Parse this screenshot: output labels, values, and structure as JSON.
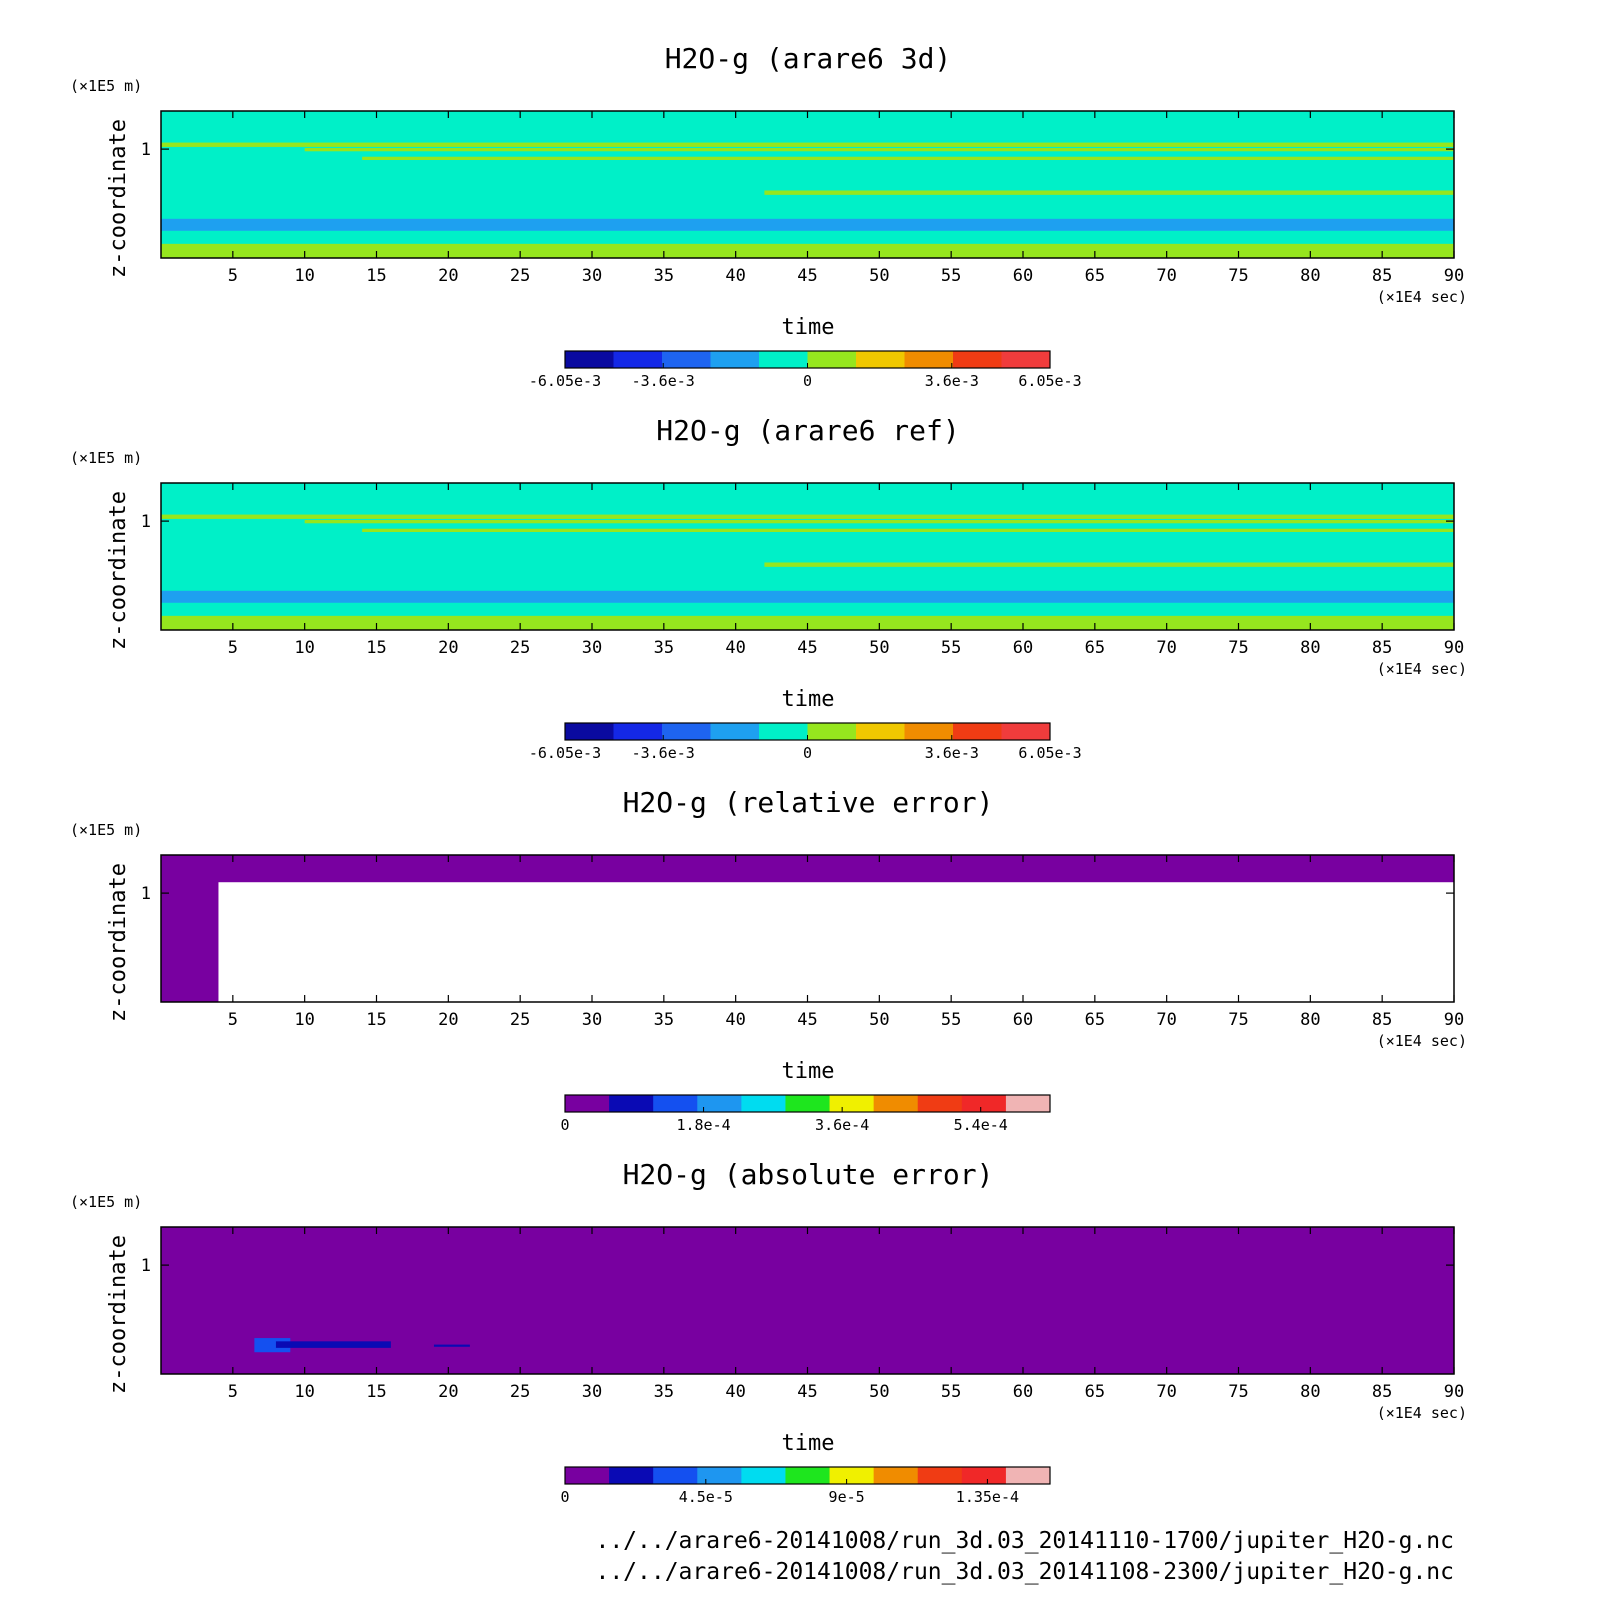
{
  "chart_data": [
    {
      "type": "heatmap",
      "title": "H2O-g (arare6 3d)",
      "xlabel": "time",
      "ylabel": "z-coordinate",
      "x_unit": "(×1E4 sec)",
      "y_unit": "(×1E5 m)",
      "xlim": [
        0,
        90
      ],
      "ylim": [
        0,
        1.35
      ],
      "x_ticks": [
        "5",
        "10",
        "15",
        "20",
        "25",
        "30",
        "35",
        "40",
        "45",
        "50",
        "55",
        "60",
        "65",
        "70",
        "75",
        "80",
        "85",
        "90"
      ],
      "y_ticks": [
        "1"
      ],
      "colorbar": {
        "colors": [
          "#0a0aa0",
          "#1428e6",
          "#1e64f0",
          "#1ea0f0",
          "#00f0c8",
          "#96e61e",
          "#f0c800",
          "#f08c00",
          "#f03c14",
          "#f03c3c"
        ],
        "labels": [
          {
            "v": -6.05,
            "t": "-6.05e-3"
          },
          {
            "v": -3.6,
            "t": "-3.6e-3"
          },
          {
            "v": 0,
            "t": "0"
          },
          {
            "v": 3.6,
            "t": "3.6e-3"
          },
          {
            "v": 6.05,
            "t": "6.05e-3"
          }
        ],
        "range": [
          -6.05,
          6.05
        ],
        "scale": "1e-3"
      },
      "background": "#00f0c8",
      "bands": [
        {
          "t0": 0,
          "t1": 90,
          "z0": 0.25,
          "z1": 0.36,
          "value": -1.5,
          "color": "#1ea0f0"
        },
        {
          "t0": 0,
          "t1": 90,
          "z0": 0.0,
          "z1": 0.13,
          "value": 1.5,
          "color": "#96e61e"
        },
        {
          "t0": 0,
          "t1": 90,
          "z0": 1.02,
          "z1": 1.06,
          "value": 1.0,
          "color": "#96e61e"
        },
        {
          "t0": 10,
          "t1": 90,
          "z0": 0.98,
          "z1": 1.01,
          "value": 1.0,
          "color": "#96e61e"
        },
        {
          "t0": 14,
          "t1": 90,
          "z0": 0.9,
          "z1": 0.93,
          "value": 1.0,
          "color": "#96e61e"
        },
        {
          "t0": 42,
          "t1": 90,
          "z0": 0.58,
          "z1": 0.62,
          "value": 1.0,
          "color": "#96e61e"
        }
      ]
    },
    {
      "type": "heatmap",
      "title": "H2O-g (arare6 ref)",
      "xlabel": "time",
      "ylabel": "z-coordinate",
      "x_unit": "(×1E4 sec)",
      "y_unit": "(×1E5 m)",
      "xlim": [
        0,
        90
      ],
      "ylim": [
        0,
        1.35
      ],
      "x_ticks": [
        "5",
        "10",
        "15",
        "20",
        "25",
        "30",
        "35",
        "40",
        "45",
        "50",
        "55",
        "60",
        "65",
        "70",
        "75",
        "80",
        "85",
        "90"
      ],
      "y_ticks": [
        "1"
      ],
      "colorbar": {
        "colors": [
          "#0a0aa0",
          "#1428e6",
          "#1e64f0",
          "#1ea0f0",
          "#00f0c8",
          "#96e61e",
          "#f0c800",
          "#f08c00",
          "#f03c14",
          "#f03c3c"
        ],
        "labels": [
          {
            "v": -6.05,
            "t": "-6.05e-3"
          },
          {
            "v": -3.6,
            "t": "-3.6e-3"
          },
          {
            "v": 0,
            "t": "0"
          },
          {
            "v": 3.6,
            "t": "3.6e-3"
          },
          {
            "v": 6.05,
            "t": "6.05e-3"
          }
        ],
        "range": [
          -6.05,
          6.05
        ],
        "scale": "1e-3"
      },
      "background": "#00f0c8",
      "bands": [
        {
          "t0": 0,
          "t1": 90,
          "z0": 0.25,
          "z1": 0.36,
          "value": -1.5,
          "color": "#1ea0f0"
        },
        {
          "t0": 0,
          "t1": 90,
          "z0": 0.0,
          "z1": 0.13,
          "value": 1.5,
          "color": "#96e61e"
        },
        {
          "t0": 0,
          "t1": 90,
          "z0": 1.02,
          "z1": 1.06,
          "value": 1.0,
          "color": "#96e61e"
        },
        {
          "t0": 10,
          "t1": 90,
          "z0": 0.98,
          "z1": 1.01,
          "value": 1.0,
          "color": "#96e61e"
        },
        {
          "t0": 14,
          "t1": 90,
          "z0": 0.9,
          "z1": 0.93,
          "value": 1.0,
          "color": "#96e61e"
        },
        {
          "t0": 42,
          "t1": 90,
          "z0": 0.58,
          "z1": 0.62,
          "value": 1.0,
          "color": "#96e61e"
        }
      ]
    },
    {
      "type": "heatmap",
      "title": "H2O-g (relative error)",
      "xlabel": "time",
      "ylabel": "z-coordinate",
      "x_unit": "(×1E4 sec)",
      "y_unit": "(×1E5 m)",
      "xlim": [
        0,
        90
      ],
      "ylim": [
        0,
        1.35
      ],
      "x_ticks": [
        "5",
        "10",
        "15",
        "20",
        "25",
        "30",
        "35",
        "40",
        "45",
        "50",
        "55",
        "60",
        "65",
        "70",
        "75",
        "80",
        "85",
        "90"
      ],
      "y_ticks": [
        "1"
      ],
      "colorbar": {
        "colors": [
          "#7800a0",
          "#0a0ab4",
          "#1450f0",
          "#1e96f0",
          "#00dcf0",
          "#1ee61e",
          "#f0f000",
          "#f08c00",
          "#f03c14",
          "#f02828",
          "#f0b4b4"
        ],
        "labels": [
          {
            "v": 0,
            "t": "0"
          },
          {
            "v": 1.8,
            "t": "1.8e-4"
          },
          {
            "v": 3.6,
            "t": "3.6e-4"
          },
          {
            "v": 5.4,
            "t": "5.4e-4"
          }
        ],
        "range": [
          0,
          6.3
        ],
        "scale": "1e-4"
      },
      "background": "#ffffff",
      "bands": [
        {
          "t0": 0,
          "t1": 90,
          "z0": 1.1,
          "z1": 1.35,
          "value": 0,
          "color": "#7800a0"
        },
        {
          "t0": 0,
          "t1": 4,
          "z0": 0.0,
          "z1": 1.35,
          "value": 0,
          "color": "#7800a0"
        }
      ]
    },
    {
      "type": "heatmap",
      "title": "H2O-g (absolute error)",
      "xlabel": "time",
      "ylabel": "z-coordinate",
      "x_unit": "(×1E4 sec)",
      "y_unit": "(×1E5 m)",
      "xlim": [
        0,
        90
      ],
      "ylim": [
        0,
        1.35
      ],
      "x_ticks": [
        "5",
        "10",
        "15",
        "20",
        "25",
        "30",
        "35",
        "40",
        "45",
        "50",
        "55",
        "60",
        "65",
        "70",
        "75",
        "80",
        "85",
        "90"
      ],
      "y_ticks": [
        "1"
      ],
      "colorbar": {
        "colors": [
          "#7800a0",
          "#0a0ab4",
          "#1450f0",
          "#1e96f0",
          "#00dcf0",
          "#1ee61e",
          "#f0f000",
          "#f08c00",
          "#f03c14",
          "#f02828",
          "#f0b4b4"
        ],
        "labels": [
          {
            "v": 0,
            "t": "0"
          },
          {
            "v": 4.5,
            "t": "4.5e-5"
          },
          {
            "v": 9,
            "t": "9e-5"
          },
          {
            "v": 13.5,
            "t": "1.35e-4"
          }
        ],
        "range": [
          0,
          15.5
        ],
        "scale": "1e-5"
      },
      "background": "#7800a0",
      "bands": [
        {
          "t0": 6.5,
          "t1": 9,
          "z0": 0.2,
          "z1": 0.33,
          "value": 3,
          "color": "#1450f0"
        },
        {
          "t0": 8,
          "t1": 16,
          "z0": 0.24,
          "z1": 0.3,
          "value": 2,
          "color": "#0a0ab4"
        },
        {
          "t0": 19,
          "t1": 21.5,
          "z0": 0.25,
          "z1": 0.27,
          "value": 2,
          "color": "#0a0ab4"
        }
      ]
    }
  ],
  "footer": {
    "line1": "../../arare6-20141008/run_3d.03_20141110-1700/jupiter_H2O-g.nc",
    "line2": "../../arare6-20141008/run_3d.03_20141108-2300/jupiter_H2O-g.nc"
  }
}
